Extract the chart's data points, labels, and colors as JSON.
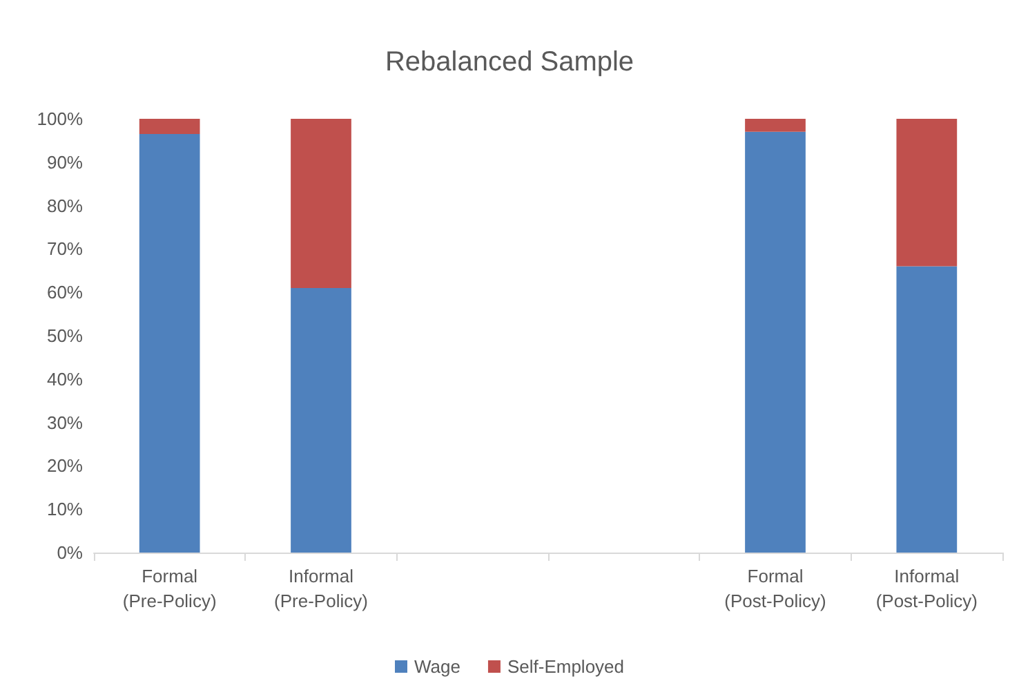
{
  "chart_data": {
    "type": "bar",
    "title": "Rebalanced Sample",
    "stacked": true,
    "categories": [
      "Formal\n(Pre-Policy)",
      "Informal\n(Pre-Policy)",
      null,
      null,
      "Formal\n(Post-Policy)",
      "Informal\n(Post-Policy)"
    ],
    "series": [
      {
        "name": "Wage",
        "color": "#4f81bd",
        "values": [
          96.5,
          61,
          null,
          null,
          97,
          66
        ]
      },
      {
        "name": "Self-Employed",
        "color": "#c0504d",
        "values": [
          3.5,
          39,
          null,
          null,
          3,
          34
        ]
      }
    ],
    "ylim": [
      0,
      100
    ],
    "yticks": [
      {
        "value": 0,
        "label": "0%"
      },
      {
        "value": 10,
        "label": "10%"
      },
      {
        "value": 20,
        "label": "20%"
      },
      {
        "value": 30,
        "label": "30%"
      },
      {
        "value": 40,
        "label": "40%"
      },
      {
        "value": 50,
        "label": "50%"
      },
      {
        "value": 60,
        "label": "60%"
      },
      {
        "value": 70,
        "label": "70%"
      },
      {
        "value": 80,
        "label": "80%"
      },
      {
        "value": 90,
        "label": "90%"
      },
      {
        "value": 100,
        "label": "100%"
      }
    ],
    "grid": false,
    "legend": "bottom"
  }
}
